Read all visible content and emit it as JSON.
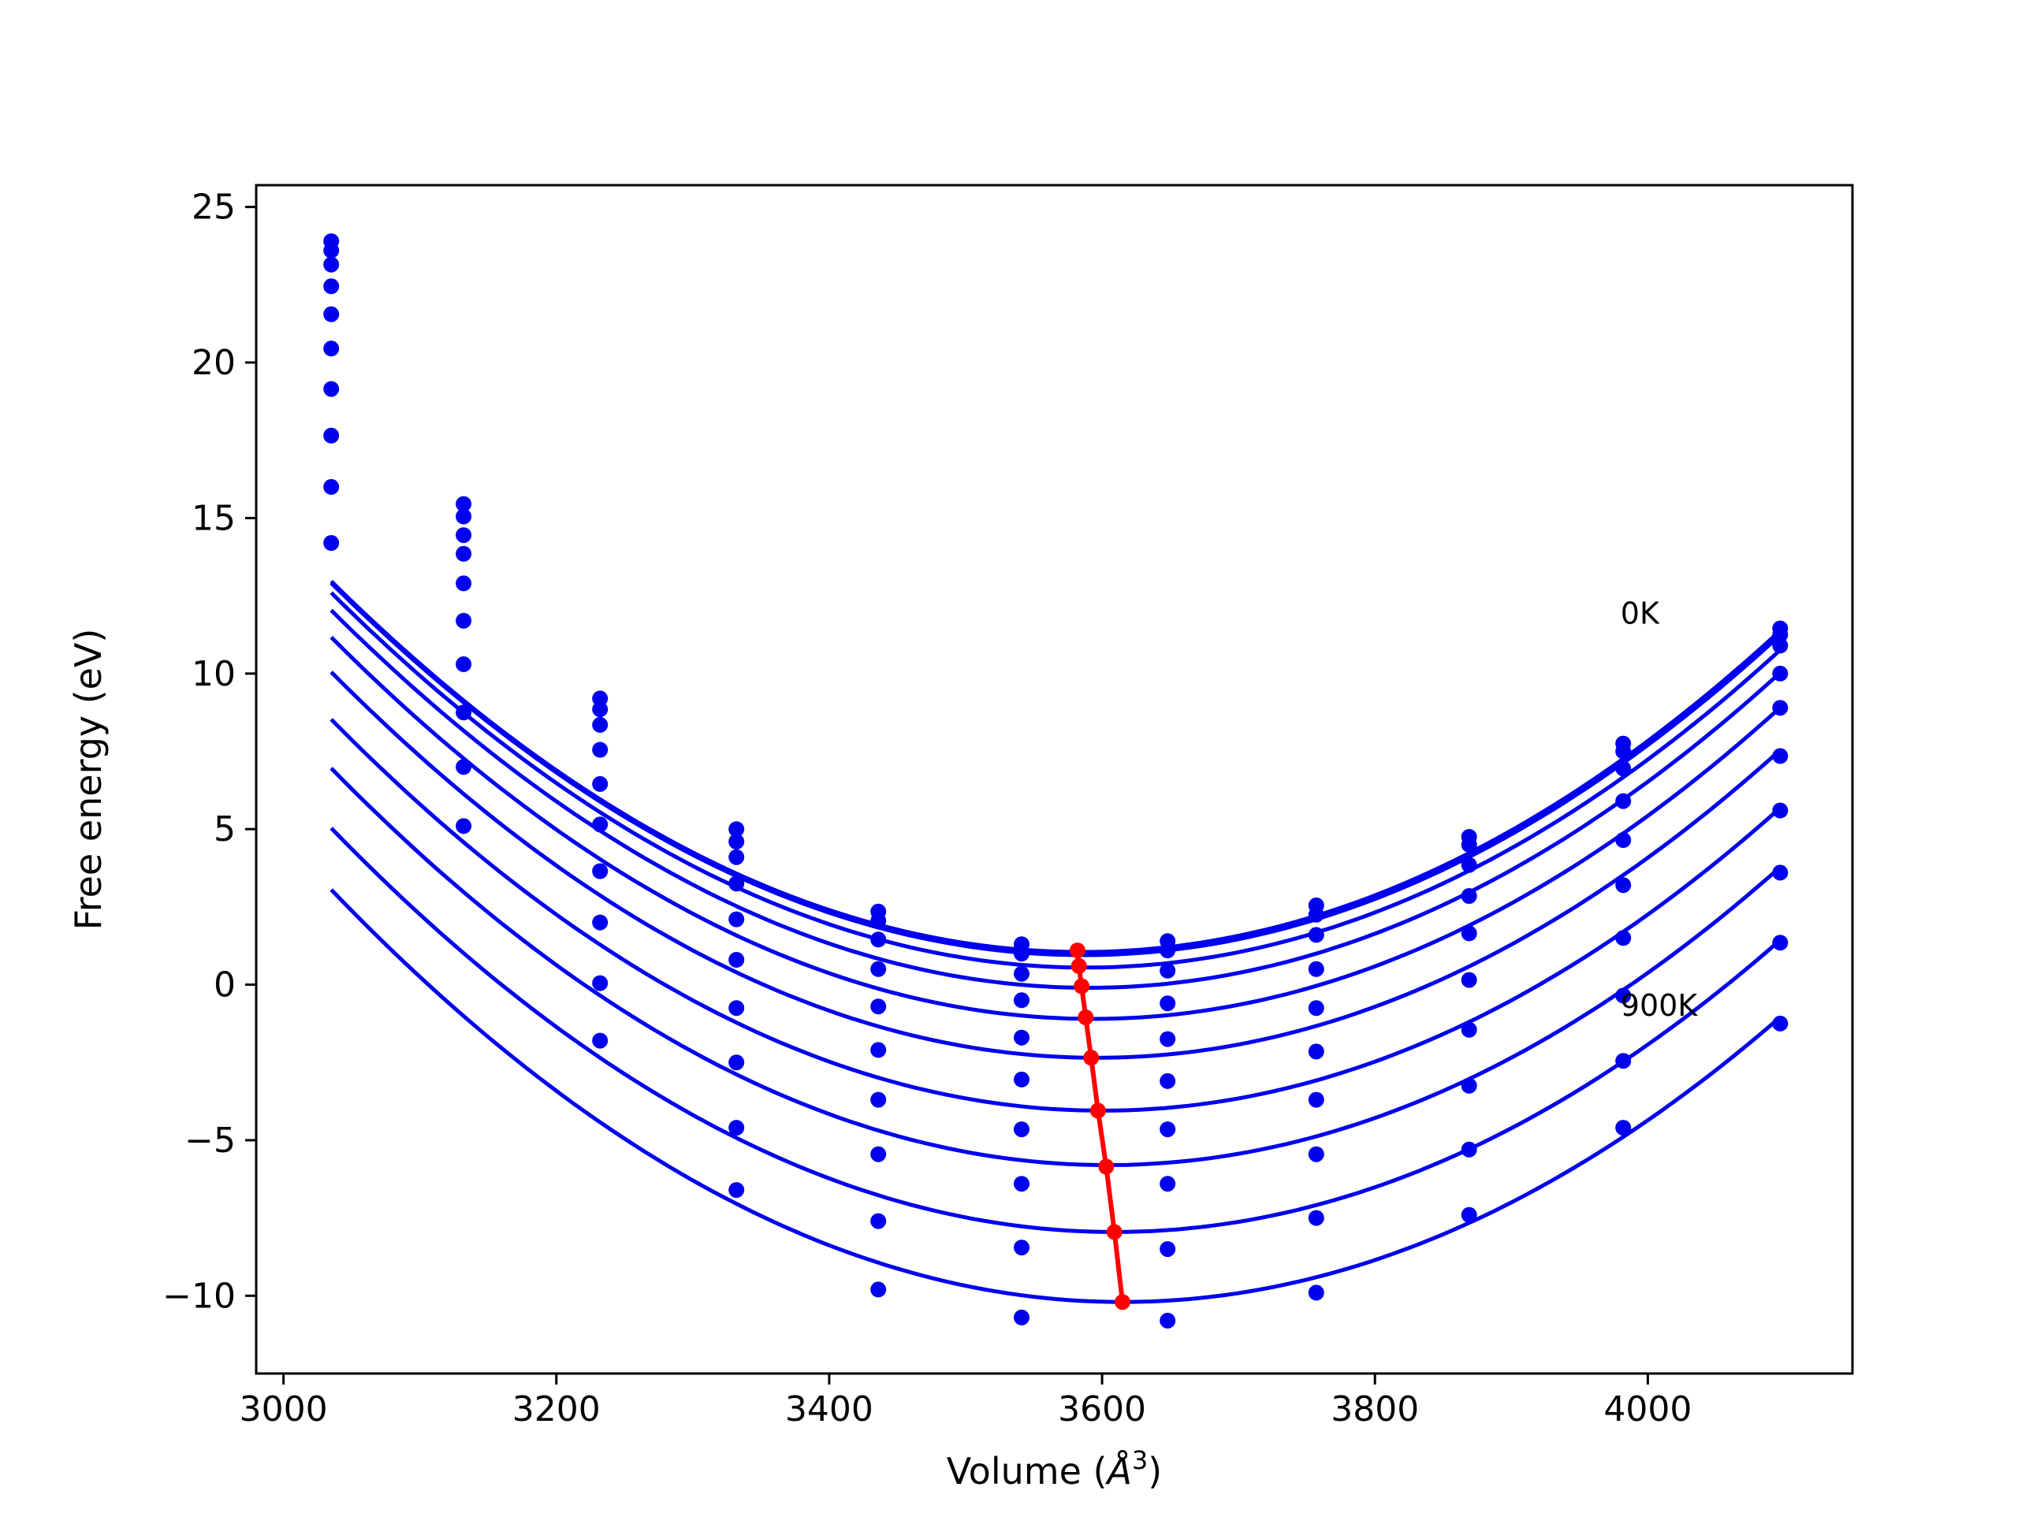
{
  "chart_data": {
    "type": "line",
    "title": "",
    "xlabel": "Volume (",
    "xlabel_symbol": "Å",
    "xlabel_exponent": "3",
    "xlabel_close": ")",
    "ylabel": "Free energy (eV)",
    "xlim": [
      2980,
      4150
    ],
    "ylim": [
      -12.5,
      25.7
    ],
    "grid": false,
    "xticks": [
      3000,
      3200,
      3400,
      3600,
      3800,
      4000
    ],
    "xtick_labels": [
      "3000",
      "3200",
      "3400",
      "3600",
      "3800",
      "4000"
    ],
    "yticks": [
      -10,
      -5,
      0,
      5,
      10,
      15,
      20,
      25
    ],
    "ytick_labels": [
      "−10",
      "−5",
      "0",
      "5",
      "10",
      "15",
      "20",
      "25"
    ],
    "annotations": [
      {
        "text": "0K",
        "x": 3980,
        "y": 11.6
      },
      {
        "text": "900K",
        "x": 3980,
        "y": -1.0
      }
    ],
    "volumes": [
      3035,
      3132,
      3232,
      3332,
      3436,
      3541,
      3648,
      3757,
      3869,
      3982,
      4097
    ],
    "series": [
      {
        "values": [
          23.9,
          15.45,
          9.2,
          5.0,
          2.35,
          1.3,
          1.4,
          2.55,
          4.75,
          7.75,
          11.45
        ]
      },
      {
        "values": [
          23.6,
          15.05,
          8.85,
          4.6,
          2.05,
          1.0,
          1.1,
          2.25,
          4.5,
          7.5,
          11.25
        ]
      },
      {
        "values": [
          23.15,
          14.45,
          8.35,
          4.1,
          1.45,
          0.35,
          0.45,
          1.6,
          3.85,
          6.95,
          10.9
        ]
      },
      {
        "values": [
          22.45,
          13.85,
          7.55,
          3.25,
          0.5,
          -0.5,
          -0.6,
          0.5,
          2.85,
          5.9,
          10.0
        ]
      },
      {
        "values": [
          21.55,
          12.9,
          6.45,
          2.1,
          -0.7,
          -1.7,
          -1.75,
          -0.75,
          1.65,
          4.65,
          8.9
        ]
      },
      {
        "values": [
          20.45,
          11.7,
          5.15,
          0.8,
          -2.1,
          -3.05,
          -3.1,
          -2.15,
          0.15,
          3.2,
          7.35
        ]
      },
      {
        "values": [
          19.15,
          10.3,
          3.65,
          -0.75,
          -3.7,
          -4.65,
          -4.65,
          -3.7,
          -1.45,
          1.5,
          5.6
        ]
      },
      {
        "values": [
          17.65,
          8.75,
          2.0,
          -2.5,
          -5.45,
          -6.4,
          -6.4,
          -5.45,
          -3.25,
          -0.35,
          3.6
        ]
      },
      {
        "values": [
          16.0,
          7.0,
          0.05,
          -4.6,
          -7.6,
          -8.45,
          -8.5,
          -7.5,
          -5.3,
          -2.45,
          1.35
        ]
      },
      {
        "values": [
          14.2,
          5.1,
          -1.8,
          -6.6,
          -9.8,
          -10.7,
          -10.8,
          -9.9,
          -7.4,
          -4.6,
          -1.25
        ]
      }
    ],
    "fits": [
      {
        "v0": 3585,
        "e0": 1.05,
        "a": 3.94e-05,
        "b": 0.0
      },
      {
        "v0": 3586,
        "e0": 0.95,
        "a": 3.94e-05,
        "b": 0.0
      },
      {
        "v0": 3588,
        "e0": 0.55,
        "a": 3.94e-05,
        "b": 0.0
      },
      {
        "v0": 3590,
        "e0": -0.1,
        "a": 3.94e-05,
        "b": 0.0
      },
      {
        "v0": 3593,
        "e0": -1.1,
        "a": 3.94e-05,
        "b": 0.0
      },
      {
        "v0": 3596,
        "e0": -2.35,
        "a": 3.94e-05,
        "b": 0.0
      },
      {
        "v0": 3600,
        "e0": -4.05,
        "a": 3.94e-05,
        "b": 0.0
      },
      {
        "v0": 3604,
        "e0": -5.8,
        "a": 3.94e-05,
        "b": 0.0
      },
      {
        "v0": 3609,
        "e0": -7.95,
        "a": 3.94e-05,
        "b": 0.0
      },
      {
        "v0": 3615,
        "e0": -10.2,
        "a": 3.94e-05,
        "b": 0.0
      }
    ],
    "minimum_curve": {
      "x": [
        3582,
        3583,
        3585,
        3588,
        3592,
        3597,
        3603,
        3609,
        3615
      ],
      "y": [
        1.1,
        0.6,
        -0.05,
        -1.05,
        -2.35,
        -4.05,
        -5.85,
        -7.95,
        -10.2
      ]
    },
    "colors": {
      "curves": "#0000ee",
      "points": "#0000ee",
      "minimum": "#ff0000",
      "axes": "#000000"
    }
  }
}
